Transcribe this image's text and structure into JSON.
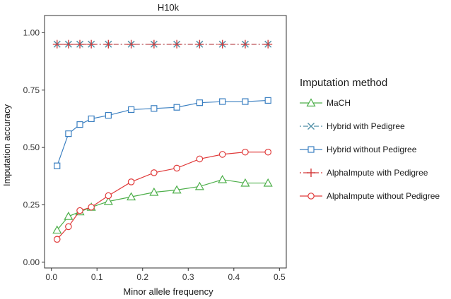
{
  "chart_data": {
    "type": "line",
    "title": "H10k",
    "xlabel": "Minor allele frequency",
    "ylabel": "Imputation accuracy",
    "xlim": [
      -0.015,
      0.515
    ],
    "ylim": [
      -0.025,
      1.075
    ],
    "xticks": [
      "0.0",
      "0.1",
      "0.2",
      "0.3",
      "0.4",
      "0.5"
    ],
    "yticks": [
      "0.00",
      "0.25",
      "0.50",
      "0.75",
      "1.00"
    ],
    "grid": false,
    "legend_title": "Imputation method",
    "legend_position": "right",
    "x": [
      0.0125,
      0.0375,
      0.0625,
      0.0875,
      0.125,
      0.175,
      0.225,
      0.275,
      0.325,
      0.375,
      0.425,
      0.475
    ],
    "series": [
      {
        "name": "MaCH",
        "color": "#4daf4a",
        "marker": "triangle",
        "line": "solid",
        "values": [
          0.14,
          0.2,
          0.22,
          0.24,
          0.265,
          0.285,
          0.305,
          0.315,
          0.33,
          0.36,
          0.345,
          0.345
        ]
      },
      {
        "name": "Hybrid with Pedigree",
        "color": "#4f8fa6",
        "marker": "x",
        "line": "dotdash",
        "values": [
          0.95,
          0.95,
          0.95,
          0.95,
          0.95,
          0.95,
          0.95,
          0.95,
          0.95,
          0.95,
          0.95,
          0.95
        ]
      },
      {
        "name": "Hybrid without Pedigree",
        "color": "#3a7fc1",
        "marker": "square",
        "line": "solid",
        "values": [
          0.42,
          0.56,
          0.6,
          0.625,
          0.64,
          0.665,
          0.67,
          0.675,
          0.695,
          0.7,
          0.7,
          0.705
        ]
      },
      {
        "name": "AlphaImpute with Pedigree",
        "color": "#d43c3c",
        "marker": "plus",
        "line": "dotdash",
        "values": [
          0.95,
          0.95,
          0.95,
          0.95,
          0.95,
          0.95,
          0.95,
          0.95,
          0.95,
          0.95,
          0.95,
          0.95
        ]
      },
      {
        "name": "AlphaImpute without Pedigree",
        "color": "#e03a3a",
        "marker": "circle",
        "line": "solid",
        "values": [
          0.1,
          0.155,
          0.225,
          0.24,
          0.29,
          0.35,
          0.39,
          0.41,
          0.45,
          0.47,
          0.48,
          0.48
        ]
      }
    ]
  }
}
